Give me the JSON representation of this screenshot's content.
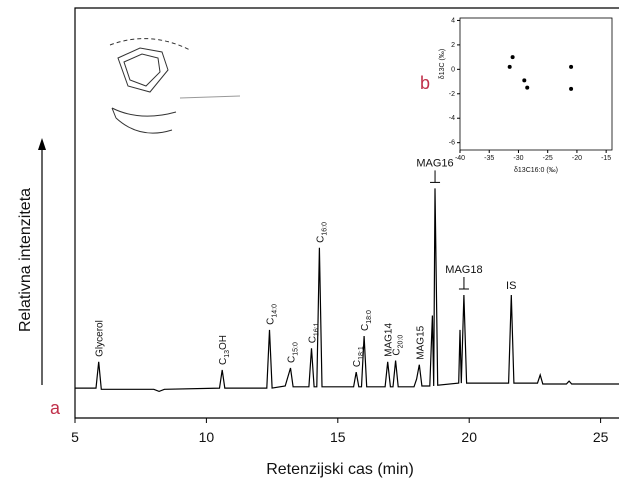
{
  "chart_data": [
    {
      "type": "line",
      "x_label": "Retenzijski cas (min)",
      "y_label": "Relativna intenziteta",
      "panel_label": "a",
      "xlim": [
        5,
        25.7
      ],
      "xticks": [
        5,
        10,
        15,
        20,
        25
      ],
      "ylim": [
        0,
        100
      ],
      "color": "#000000",
      "x": [
        5.0,
        5.8,
        5.9,
        6.0,
        8.0,
        8.2,
        8.4,
        10.5,
        10.6,
        10.7,
        12.3,
        12.4,
        12.5,
        13.0,
        13.2,
        13.3,
        13.9,
        14.0,
        14.1,
        14.2,
        14.3,
        14.4,
        15.6,
        15.7,
        15.8,
        15.9,
        16.0,
        16.1,
        16.8,
        16.9,
        17.0,
        17.1,
        17.2,
        17.3,
        17.9,
        18.0,
        18.1,
        18.2,
        18.5,
        18.6,
        18.65,
        18.7,
        18.8,
        19.6,
        19.65,
        19.7,
        19.8,
        19.9,
        21.5,
        21.6,
        21.7,
        22.6,
        22.7,
        22.8,
        23.7,
        23.8,
        23.9,
        25.7
      ],
      "values": [
        7.3,
        7.3,
        13.7,
        7.0,
        7.0,
        6.5,
        7.0,
        7.3,
        11.7,
        7.3,
        7.3,
        21.5,
        7.3,
        7.8,
        12.2,
        7.6,
        7.6,
        17,
        7.6,
        7.6,
        41.5,
        7.6,
        7.6,
        11.2,
        7.6,
        7.6,
        20,
        7.6,
        7.6,
        13.7,
        7.6,
        7.6,
        14,
        7.6,
        7.6,
        9.5,
        13,
        7.8,
        7.8,
        25,
        7.8,
        56,
        8,
        8.5,
        21.5,
        8.5,
        30,
        8.5,
        8.5,
        30,
        8.5,
        8.5,
        10.5,
        8.3,
        8.3,
        9,
        8.3,
        8.3
      ],
      "annotations": [
        {
          "text": "Glycerol",
          "x": 5.9
        },
        {
          "text": "C",
          "sub": "13",
          "tail": "OH",
          "x": 10.6
        },
        {
          "text": "C",
          "sub": "14:0",
          "x": 12.4
        },
        {
          "text": "C",
          "sub": "15:0",
          "x": 13.2
        },
        {
          "text": "C",
          "sub": "16:1",
          "x": 14.0
        },
        {
          "text": "C",
          "sub": "16:0",
          "x": 14.3
        },
        {
          "text": "C",
          "sub": "18:1",
          "x": 15.7
        },
        {
          "text": "C",
          "sub": "18:0",
          "x": 16.0
        },
        {
          "text": "MAG14",
          "x": 16.9
        },
        {
          "text": "C",
          "sub": "20:0",
          "x": 17.2
        },
        {
          "text": "MAG15",
          "x": 18.1
        },
        {
          "text": "MAG16",
          "x": 18.7,
          "orientation": "horizontal"
        },
        {
          "text": "MAG18",
          "x": 19.8,
          "orientation": "horizontal"
        },
        {
          "text": "IS",
          "x": 21.6,
          "orientation": "horizontal"
        }
      ]
    },
    {
      "type": "scatter",
      "panel_label": "b",
      "x_label": "δ13C16:0 (‰)",
      "y_label": "δ13C (‰)",
      "xlim": [
        -40,
        -14
      ],
      "xticks": [
        -40,
        -35,
        -30,
        -25,
        -20,
        -15
      ],
      "ylim": [
        -6.6,
        4.2
      ],
      "yticks": [
        4,
        2,
        0,
        -2,
        -4,
        -6
      ],
      "color": "#000000",
      "x": [
        -31,
        -31.5,
        -29,
        -28.5,
        -21,
        -21
      ],
      "values": [
        1,
        0.2,
        -0.9,
        -1.5,
        0.2,
        -1.6
      ]
    }
  ]
}
